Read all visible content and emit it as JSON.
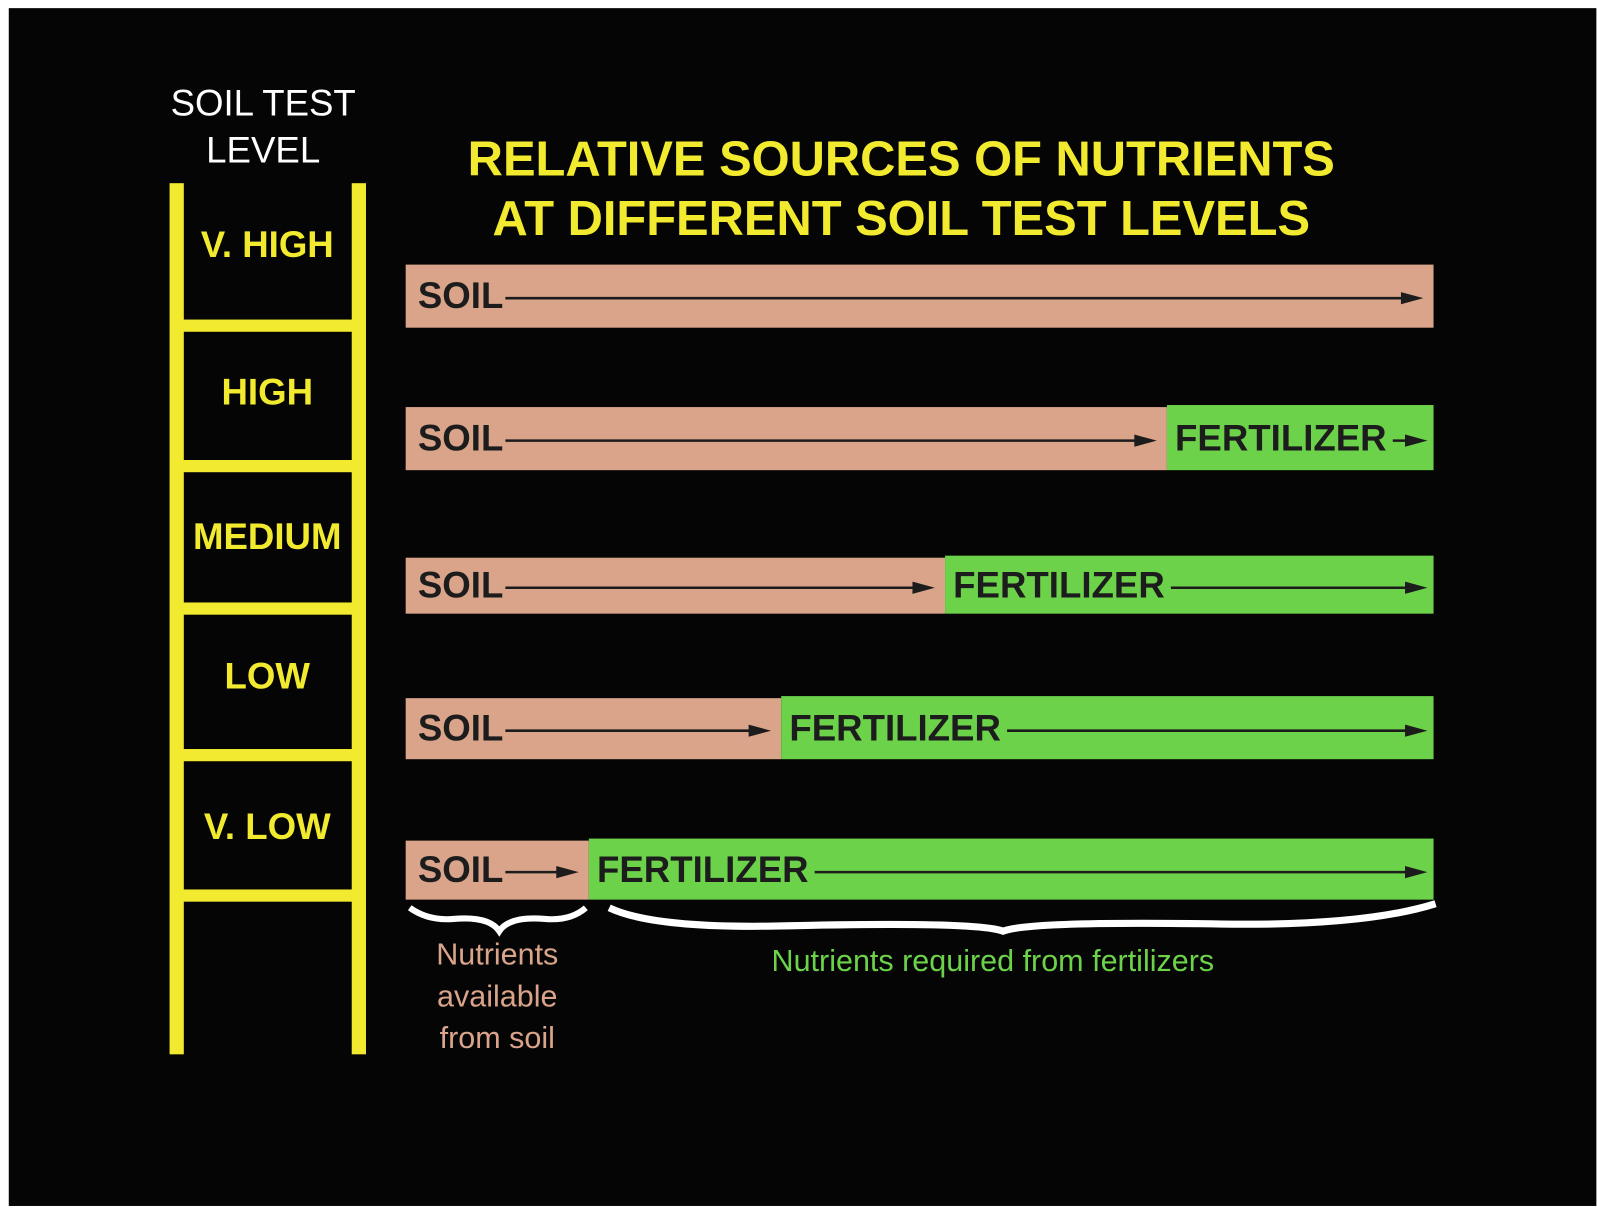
{
  "ladder": {
    "title": [
      "SOIL TEST",
      "LEVEL"
    ],
    "levels": [
      "V. HIGH",
      "HIGH",
      "MEDIUM",
      "LOW",
      "V. LOW"
    ]
  },
  "title": [
    "RELATIVE SOURCES OF NUTRIENTS",
    "AT DIFFERENT SOIL TEST LEVELS"
  ],
  "rows": [
    {
      "soil": "SOIL"
    },
    {
      "soil": "SOIL",
      "fertilizer": "FERTILIZER"
    },
    {
      "soil": "SOIL",
      "fertilizer": "FERTILIZER"
    },
    {
      "soil": "SOIL",
      "fertilizer": "FERTILIZER"
    },
    {
      "soil": "SOIL",
      "fertilizer": "FERTILIZER"
    }
  ],
  "notes": {
    "soil": [
      "Nutrients",
      "available",
      "from soil"
    ],
    "fertilizer": "Nutrients required from fertilizers"
  }
}
